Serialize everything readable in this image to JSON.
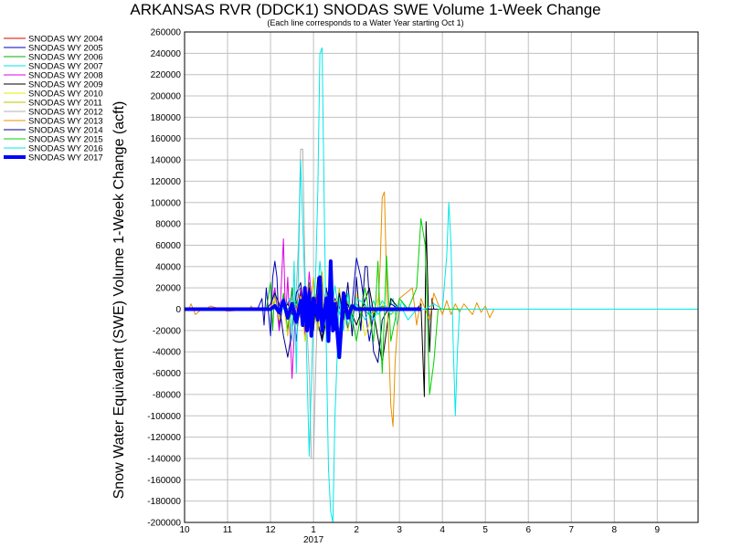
{
  "chart_data": {
    "type": "line",
    "title": "ARKANSAS RVR (DDCK1) SNODAS SWE Volume 1-Week Change",
    "subtitle": "(Each line corresponds to a Water Year starting Oct 1)",
    "ylabel": "Snow Water Equivalent (SWE) Volume 1-Week Change (acft)",
    "xlabel": "",
    "x_tick_labels": [
      "10",
      "11",
      "12",
      "1",
      "2",
      "3",
      "4",
      "5",
      "6",
      "7",
      "8",
      "9"
    ],
    "x_year_label": "2017",
    "xlim": [
      0,
      11.95
    ],
    "ylim": [
      -200000,
      260000
    ],
    "y_step": 20000,
    "grid": true,
    "legend_position": "top-left",
    "series": [
      {
        "name": "SNODAS WY 2004",
        "color": "#e00000",
        "width": 1,
        "x": [
          0,
          2.3,
          2.45,
          2.55,
          2.65,
          2.75,
          2.85,
          2.95,
          3.05,
          3.15,
          3.3,
          3.45,
          3.6,
          3.8,
          4.0,
          5.3,
          11.95
        ],
        "y": [
          0,
          0,
          8000,
          -12000,
          15000,
          -10000,
          12000,
          -15000,
          10000,
          -8000,
          6000,
          -5000,
          4000,
          -3000,
          0,
          0,
          0
        ]
      },
      {
        "name": "SNODAS WY 2005",
        "color": "#0000c0",
        "width": 1,
        "x": [
          0,
          1.7,
          1.75,
          1.8,
          1.85,
          1.9,
          2.0,
          2.05,
          2.1,
          2.15,
          2.2,
          2.3,
          2.4,
          2.5,
          2.6,
          2.7,
          2.8,
          2.9,
          3.0,
          3.1,
          3.2,
          3.3,
          3.4,
          3.5,
          3.6,
          3.7,
          3.8,
          3.9,
          4.0,
          4.1,
          4.2,
          4.3,
          4.4,
          4.5,
          4.6,
          5.2,
          11.95
        ],
        "y": [
          0,
          0,
          5000,
          10000,
          -15000,
          20000,
          -25000,
          30000,
          45000,
          30000,
          -20000,
          10000,
          -25000,
          20000,
          -30000,
          18000,
          -20000,
          15000,
          -15000,
          12000,
          -10000,
          20000,
          -15000,
          10000,
          0,
          15000,
          -20000,
          5000,
          48000,
          30000,
          0,
          -30000,
          -5000,
          0,
          0,
          0,
          0
        ]
      },
      {
        "name": "SNODAS WY 2006",
        "color": "#00b000",
        "width": 1,
        "x": [
          0,
          1.9,
          2.0,
          2.05,
          2.1,
          2.2,
          2.3,
          2.4,
          2.5,
          2.6,
          2.7,
          2.8,
          2.9,
          3.0,
          3.1,
          3.2,
          3.3,
          3.4,
          3.5,
          3.6,
          3.7,
          4.0,
          4.3,
          4.6,
          4.8,
          5.0,
          11.95
        ],
        "y": [
          0,
          0,
          25000,
          -20000,
          20000,
          -15000,
          15000,
          -20000,
          20000,
          -15000,
          10000,
          -20000,
          25000,
          -10000,
          10000,
          -15000,
          8000,
          -10000,
          6000,
          -5000,
          0,
          5000,
          -5000,
          3000,
          -2000,
          0,
          0
        ]
      },
      {
        "name": "SNODAS WY 2007",
        "color": "#00e0e0",
        "width": 1,
        "x": [
          0,
          3.0,
          3.05,
          3.1,
          3.15,
          3.2,
          3.25,
          3.3,
          3.35,
          3.4,
          3.5,
          3.6,
          3.7,
          3.8,
          4.0,
          4.2,
          4.4,
          4.5,
          4.6,
          4.75,
          4.85,
          4.95,
          5.05,
          5.15,
          5.5,
          11.95
        ],
        "y": [
          0,
          0,
          10000,
          20000,
          45000,
          22000,
          5000,
          -20000,
          14000,
          -10000,
          22000,
          -5000,
          10000,
          -15000,
          5000,
          -10000,
          8000,
          -5000,
          0,
          0,
          10000,
          -15000,
          8000,
          0,
          0,
          0
        ]
      },
      {
        "name": "SNODAS WY 2008",
        "color": "#e000e0",
        "width": 1,
        "x": [
          0,
          2.0,
          2.1,
          2.2,
          2.3,
          2.35,
          2.4,
          2.5,
          2.6,
          2.7,
          2.8,
          2.9,
          3.0,
          3.1,
          3.2,
          3.3,
          3.5,
          3.7,
          4.0,
          11.95
        ],
        "y": [
          0,
          0,
          20000,
          -20000,
          66000,
          -10000,
          30000,
          -65000,
          15000,
          20000,
          -25000,
          35000,
          -10000,
          15000,
          -20000,
          8000,
          0,
          5000,
          0,
          0
        ]
      },
      {
        "name": "SNODAS WY 2009",
        "color": "#000000",
        "width": 1,
        "x": [
          0,
          2.3,
          2.4,
          2.5,
          2.6,
          2.7,
          2.8,
          2.9,
          3.0,
          3.2,
          3.4,
          3.6,
          3.8,
          4.0,
          4.3,
          4.6,
          4.8,
          5.0,
          5.4,
          5.5,
          5.58,
          5.62,
          5.7,
          5.76,
          5.8,
          5.9,
          6.0,
          11.95
        ],
        "y": [
          0,
          0,
          5000,
          -5000,
          8000,
          -8000,
          10000,
          -10000,
          5000,
          -30000,
          10000,
          -20000,
          5000,
          -15000,
          20000,
          -50000,
          10000,
          0,
          0,
          5000,
          -82000,
          82000,
          -40000,
          10000,
          0,
          0,
          0,
          0
        ]
      },
      {
        "name": "SNODAS WY 2010",
        "color": "#e8e800",
        "width": 1,
        "x": [
          0,
          2.0,
          2.1,
          2.2,
          2.3,
          2.4,
          2.5,
          2.6,
          2.7,
          2.8,
          2.9,
          3.0,
          3.1,
          3.2,
          3.3,
          3.4,
          3.6,
          3.8,
          4.0,
          4.2,
          4.5,
          4.8,
          5.0,
          11.95
        ],
        "y": [
          0,
          0,
          10000,
          -10000,
          8000,
          -25000,
          5000,
          -15000,
          12000,
          -30000,
          15000,
          0,
          -20000,
          10000,
          -15000,
          5000,
          10000,
          -20000,
          15000,
          -25000,
          10000,
          -5000,
          0,
          0
        ]
      },
      {
        "name": "SNODAS WY 2011",
        "color": "#c0c000",
        "width": 1,
        "x": [
          0,
          2.5,
          2.6,
          2.7,
          2.8,
          2.9,
          3.0,
          3.1,
          3.2,
          3.3,
          3.4,
          3.5,
          3.6,
          3.7,
          3.8,
          3.9,
          4.0,
          4.2,
          4.4,
          4.6,
          4.8,
          5.0,
          11.95
        ],
        "y": [
          0,
          0,
          5000,
          -8000,
          15000,
          -10000,
          30000,
          -20000,
          35000,
          -25000,
          10000,
          -15000,
          20000,
          -10000,
          8000,
          -5000,
          0,
          3000,
          -3000,
          2000,
          -2000,
          0,
          0
        ]
      },
      {
        "name": "SNODAS WY 2012",
        "color": "#b0b0b0",
        "width": 1,
        "x": [
          0,
          2.4,
          2.5,
          2.55,
          2.6,
          2.65,
          2.7,
          2.75,
          2.8,
          2.85,
          2.9,
          2.95,
          3.0,
          3.05,
          3.1,
          3.2,
          3.3,
          3.4,
          3.6,
          3.8,
          4.0,
          11.95
        ],
        "y": [
          0,
          0,
          10000,
          -15000,
          20000,
          60000,
          150000,
          150000,
          40000,
          -20000,
          -60000,
          -140000,
          -140000,
          -60000,
          10000,
          20000,
          -10000,
          5000,
          -5000,
          0,
          0,
          0
        ]
      },
      {
        "name": "SNODAS WY 2013",
        "color": "#e89000",
        "width": 1,
        "x": [
          0,
          0.1,
          0.15,
          0.25,
          0.4,
          0.5,
          0.6,
          1.0,
          1.5,
          1.55,
          1.6,
          2.0,
          2.5,
          3.0,
          3.5,
          4.1,
          4.5,
          4.55,
          4.6,
          4.65,
          4.7,
          4.8,
          4.85,
          4.9,
          5.0,
          5.3,
          5.4,
          5.5,
          5.7,
          5.8,
          6.0,
          6.1,
          6.2,
          6.3,
          6.4,
          6.5,
          6.6,
          6.7,
          6.8,
          6.9,
          7.0,
          7.1,
          7.2,
          11.95
        ],
        "y": [
          0,
          0,
          5000,
          -5000,
          0,
          0,
          3000,
          -2000,
          0,
          3000,
          0,
          0,
          0,
          0,
          0,
          0,
          0,
          40000,
          105000,
          110000,
          30000,
          -90000,
          -110000,
          -50000,
          10000,
          20000,
          -15000,
          10000,
          -10000,
          15000,
          -5000,
          8000,
          -5000,
          5000,
          -3000,
          5000,
          0,
          -5000,
          6000,
          -3000,
          3000,
          -8000,
          0,
          0
        ]
      },
      {
        "name": "SNODAS WY 2014",
        "color": "#000080",
        "width": 1,
        "x": [
          0,
          1.9,
          2.0,
          2.1,
          2.2,
          2.3,
          2.4,
          2.5,
          2.6,
          2.7,
          2.8,
          2.9,
          3.0,
          3.1,
          3.2,
          3.3,
          3.4,
          3.5,
          3.6,
          3.7,
          3.8,
          3.9,
          4.0,
          4.1,
          4.2,
          4.25,
          4.3,
          4.4,
          4.5,
          4.6,
          4.8,
          5.0,
          5.5,
          11.95
        ],
        "y": [
          0,
          0,
          5000,
          15000,
          5000,
          -25000,
          -45000,
          -20000,
          15000,
          25000,
          -10000,
          20000,
          -20000,
          30000,
          -30000,
          10000,
          25000,
          -20000,
          15000,
          -10000,
          25000,
          -25000,
          30000,
          -20000,
          40000,
          40000,
          10000,
          -40000,
          -50000,
          -10000,
          5000,
          0,
          0,
          0
        ]
      },
      {
        "name": "SNODAS WY 2015",
        "color": "#00d000",
        "width": 1,
        "x": [
          0,
          2.4,
          2.6,
          2.8,
          3.0,
          3.2,
          3.4,
          3.6,
          3.8,
          4.0,
          4.2,
          4.4,
          4.5,
          4.6,
          4.7,
          4.8,
          5.0,
          5.2,
          5.4,
          5.5,
          5.6,
          5.7,
          5.8,
          5.9,
          6.0,
          11.95
        ],
        "y": [
          0,
          0,
          8000,
          -10000,
          12000,
          -15000,
          10000,
          -20000,
          15000,
          -30000,
          20000,
          -30000,
          45000,
          -60000,
          50000,
          -30000,
          10000,
          0,
          20000,
          85000,
          60000,
          -80000,
          -50000,
          0,
          0,
          0
        ]
      },
      {
        "name": "SNODAS WY 2016",
        "color": "#00e8e8",
        "width": 1,
        "x": [
          0,
          2.3,
          2.45,
          2.5,
          2.55,
          2.6,
          2.7,
          2.8,
          2.9,
          3.0,
          3.05,
          3.1,
          3.15,
          3.2,
          3.25,
          3.3,
          3.35,
          3.4,
          3.45,
          3.5,
          3.6,
          3.7,
          3.8,
          3.9,
          4.0,
          4.2,
          4.4,
          4.6,
          4.8,
          5.0,
          5.2,
          5.4,
          5.6,
          5.8,
          6.0,
          6.1,
          6.15,
          6.2,
          6.25,
          6.3,
          6.35,
          6.4,
          6.5,
          6.7,
          11.95
        ],
        "y": [
          0,
          0,
          10000,
          -30000,
          45000,
          -60000,
          140000,
          20000,
          -138000,
          0,
          30000,
          110000,
          240000,
          245000,
          100000,
          -40000,
          -150000,
          -190000,
          -200000,
          -100000,
          10000,
          -20000,
          15000,
          -15000,
          10000,
          5000,
          -10000,
          8000,
          -5000,
          5000,
          -10000,
          0,
          0,
          5000,
          0,
          50000,
          100000,
          60000,
          -30000,
          -100000,
          -40000,
          0,
          0,
          0,
          0
        ]
      },
      {
        "name": "SNODAS WY 2017",
        "color": "#0000ff",
        "width": 4,
        "x": [
          0,
          2.0,
          2.1,
          2.2,
          2.3,
          2.4,
          2.5,
          2.6,
          2.7,
          2.75,
          2.8,
          2.85,
          2.9,
          2.95,
          3.0,
          3.1,
          3.15,
          3.2,
          3.3,
          3.35,
          3.4,
          3.45,
          3.5,
          3.6,
          3.7,
          3.8,
          3.9,
          4.0,
          4.2,
          4.5,
          4.8,
          5.5
        ],
        "y": [
          0,
          0,
          3000,
          -3000,
          8000,
          -8000,
          5000,
          -12000,
          8000,
          -15000,
          20000,
          -20000,
          15000,
          -25000,
          10000,
          -10000,
          30000,
          -20000,
          10000,
          -30000,
          45000,
          -20000,
          5000,
          -45000,
          15000,
          -8000,
          3000,
          0,
          0,
          0,
          0,
          0
        ]
      }
    ]
  }
}
